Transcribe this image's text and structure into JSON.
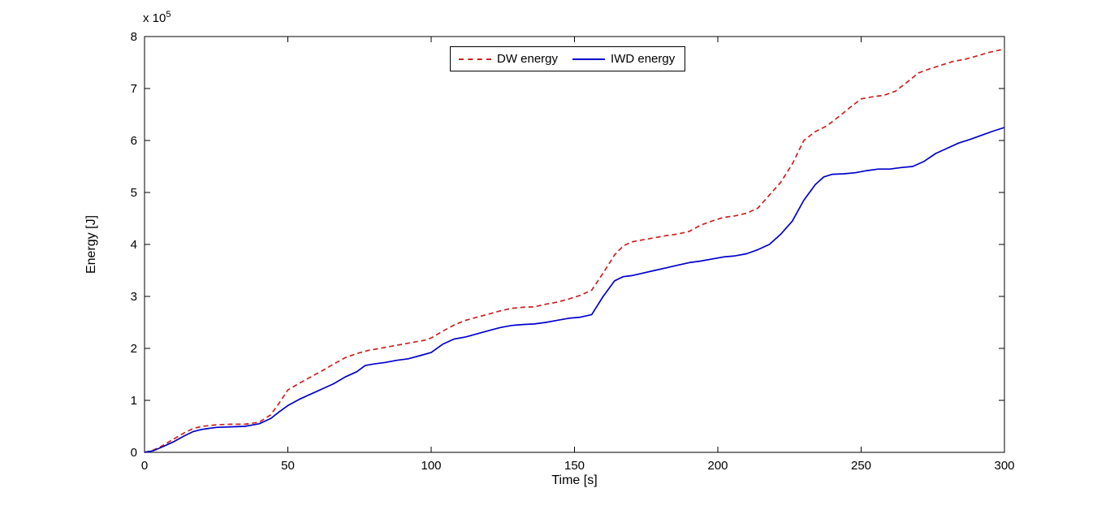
{
  "figure": {
    "background": "#ffffff"
  },
  "chart_data": {
    "type": "line",
    "title": "",
    "xlabel": "Time [s]",
    "ylabel": "Energy [J]",
    "y_exponent_label": {
      "base": "x 10",
      "exp": "5"
    },
    "xlim": [
      0,
      300
    ],
    "ylim": [
      0,
      8
    ],
    "x_ticks": [
      0,
      50,
      100,
      150,
      200,
      250,
      300
    ],
    "y_ticks": [
      0,
      1,
      2,
      3,
      4,
      5,
      6,
      7,
      8
    ],
    "y_units_note": "values in 1e5 J",
    "grid": false,
    "legend_position": "top-center-inside",
    "axis_color": "#000000",
    "series": [
      {
        "name": "DW energy",
        "color": "#cc2020",
        "style": "dashed",
        "points": [
          [
            0,
            0
          ],
          [
            3,
            0.04
          ],
          [
            6,
            0.12
          ],
          [
            10,
            0.25
          ],
          [
            14,
            0.38
          ],
          [
            17,
            0.46
          ],
          [
            20,
            0.5
          ],
          [
            25,
            0.53
          ],
          [
            30,
            0.54
          ],
          [
            35,
            0.54
          ],
          [
            40,
            0.58
          ],
          [
            44,
            0.72
          ],
          [
            47,
            0.95
          ],
          [
            50,
            1.2
          ],
          [
            54,
            1.33
          ],
          [
            58,
            1.45
          ],
          [
            62,
            1.57
          ],
          [
            66,
            1.7
          ],
          [
            70,
            1.82
          ],
          [
            74,
            1.9
          ],
          [
            78,
            1.96
          ],
          [
            82,
            2.0
          ],
          [
            86,
            2.04
          ],
          [
            90,
            2.08
          ],
          [
            94,
            2.12
          ],
          [
            98,
            2.16
          ],
          [
            100,
            2.2
          ],
          [
            104,
            2.33
          ],
          [
            108,
            2.45
          ],
          [
            112,
            2.54
          ],
          [
            116,
            2.6
          ],
          [
            120,
            2.66
          ],
          [
            124,
            2.72
          ],
          [
            128,
            2.77
          ],
          [
            132,
            2.79
          ],
          [
            136,
            2.8
          ],
          [
            140,
            2.85
          ],
          [
            144,
            2.89
          ],
          [
            148,
            2.95
          ],
          [
            152,
            3.02
          ],
          [
            156,
            3.12
          ],
          [
            160,
            3.45
          ],
          [
            164,
            3.8
          ],
          [
            167,
            3.97
          ],
          [
            170,
            4.05
          ],
          [
            174,
            4.09
          ],
          [
            178,
            4.13
          ],
          [
            182,
            4.17
          ],
          [
            186,
            4.2
          ],
          [
            190,
            4.25
          ],
          [
            194,
            4.37
          ],
          [
            198,
            4.45
          ],
          [
            202,
            4.52
          ],
          [
            206,
            4.55
          ],
          [
            210,
            4.6
          ],
          [
            214,
            4.7
          ],
          [
            218,
            4.95
          ],
          [
            222,
            5.2
          ],
          [
            226,
            5.55
          ],
          [
            230,
            6.0
          ],
          [
            234,
            6.17
          ],
          [
            238,
            6.28
          ],
          [
            242,
            6.45
          ],
          [
            246,
            6.63
          ],
          [
            250,
            6.8
          ],
          [
            254,
            6.84
          ],
          [
            258,
            6.87
          ],
          [
            262,
            6.95
          ],
          [
            266,
            7.12
          ],
          [
            270,
            7.3
          ],
          [
            274,
            7.38
          ],
          [
            278,
            7.45
          ],
          [
            282,
            7.52
          ],
          [
            286,
            7.56
          ],
          [
            290,
            7.62
          ],
          [
            295,
            7.7
          ],
          [
            300,
            7.76
          ]
        ]
      },
      {
        "name": "IWD energy",
        "color": "#0000cc",
        "style": "solid",
        "points": [
          [
            0,
            0
          ],
          [
            3,
            0.03
          ],
          [
            6,
            0.1
          ],
          [
            10,
            0.2
          ],
          [
            14,
            0.32
          ],
          [
            17,
            0.4
          ],
          [
            20,
            0.44
          ],
          [
            25,
            0.48
          ],
          [
            30,
            0.49
          ],
          [
            35,
            0.5
          ],
          [
            40,
            0.55
          ],
          [
            44,
            0.65
          ],
          [
            47,
            0.78
          ],
          [
            50,
            0.9
          ],
          [
            54,
            1.02
          ],
          [
            58,
            1.12
          ],
          [
            62,
            1.22
          ],
          [
            66,
            1.32
          ],
          [
            70,
            1.45
          ],
          [
            74,
            1.55
          ],
          [
            77,
            1.67
          ],
          [
            80,
            1.7
          ],
          [
            84,
            1.73
          ],
          [
            88,
            1.77
          ],
          [
            92,
            1.8
          ],
          [
            96,
            1.86
          ],
          [
            100,
            1.92
          ],
          [
            104,
            2.08
          ],
          [
            108,
            2.18
          ],
          [
            112,
            2.22
          ],
          [
            116,
            2.28
          ],
          [
            120,
            2.34
          ],
          [
            124,
            2.4
          ],
          [
            128,
            2.44
          ],
          [
            132,
            2.46
          ],
          [
            136,
            2.47
          ],
          [
            140,
            2.5
          ],
          [
            144,
            2.54
          ],
          [
            148,
            2.58
          ],
          [
            152,
            2.6
          ],
          [
            156,
            2.65
          ],
          [
            160,
            3.0
          ],
          [
            164,
            3.3
          ],
          [
            167,
            3.38
          ],
          [
            170,
            3.4
          ],
          [
            174,
            3.45
          ],
          [
            178,
            3.5
          ],
          [
            182,
            3.55
          ],
          [
            186,
            3.6
          ],
          [
            190,
            3.65
          ],
          [
            194,
            3.68
          ],
          [
            198,
            3.72
          ],
          [
            202,
            3.76
          ],
          [
            206,
            3.78
          ],
          [
            210,
            3.82
          ],
          [
            214,
            3.9
          ],
          [
            218,
            4.0
          ],
          [
            222,
            4.2
          ],
          [
            226,
            4.45
          ],
          [
            230,
            4.85
          ],
          [
            234,
            5.15
          ],
          [
            237,
            5.3
          ],
          [
            240,
            5.35
          ],
          [
            244,
            5.36
          ],
          [
            248,
            5.38
          ],
          [
            252,
            5.42
          ],
          [
            256,
            5.45
          ],
          [
            260,
            5.45
          ],
          [
            264,
            5.48
          ],
          [
            268,
            5.5
          ],
          [
            272,
            5.6
          ],
          [
            276,
            5.75
          ],
          [
            280,
            5.85
          ],
          [
            284,
            5.95
          ],
          [
            288,
            6.02
          ],
          [
            292,
            6.1
          ],
          [
            296,
            6.18
          ],
          [
            300,
            6.25
          ]
        ]
      }
    ]
  }
}
